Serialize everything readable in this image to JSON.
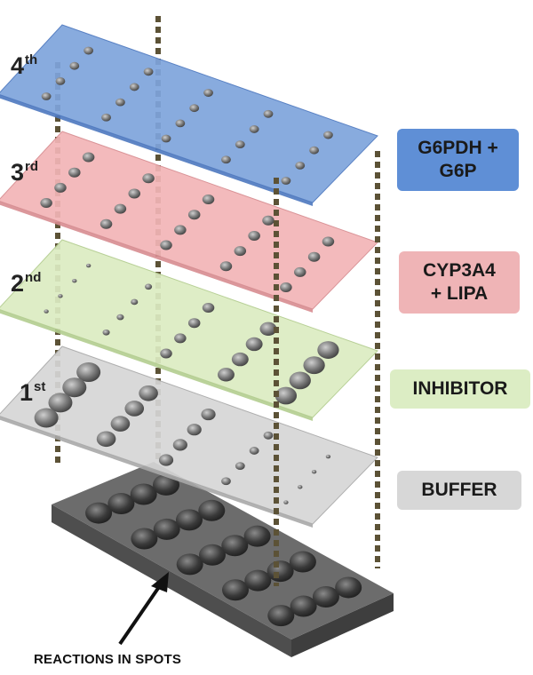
{
  "layers": [
    {
      "key": "layer-4",
      "ordinal": "4",
      "suffix": "th",
      "fill": "#7ea4dc",
      "stroke": "#4d78bf"
    },
    {
      "key": "layer-3",
      "ordinal": "3",
      "suffix": "rd",
      "fill": "#f2b5b7",
      "stroke": "#d78c90"
    },
    {
      "key": "layer-2",
      "ordinal": "2",
      "suffix": "nd",
      "fill": "#dcecc2",
      "stroke": "#b3cd8f"
    },
    {
      "key": "layer-1",
      "ordinal": "1",
      "suffix": "st",
      "fill": "#d6d6d6",
      "stroke": "#a9a9a9"
    }
  ],
  "badges": [
    {
      "key": "g6pdh",
      "line1": "G6PDH +",
      "line2": "G6P",
      "color": "#5f8fd6"
    },
    {
      "key": "cyp3a4",
      "line1": "CYP3A4",
      "line2": "+ LIPA",
      "color": "#efb4b6"
    },
    {
      "key": "inhibitor",
      "line1": "INHIBITOR",
      "line2": "",
      "color": "#dcedc4"
    },
    {
      "key": "buffer",
      "line1": "BUFFER",
      "line2": "",
      "color": "#d7d7d7"
    }
  ],
  "base": {
    "fill": "#6c6c6c",
    "spot_color": "#3c3c3c"
  },
  "annotation": "REACTIONS IN SPOTS",
  "guide_color": "#5c5236"
}
